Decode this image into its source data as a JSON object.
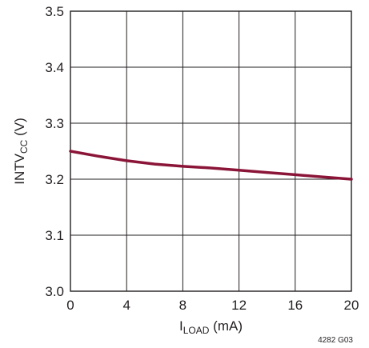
{
  "chart_data": {
    "type": "line",
    "xlabel": {
      "main": "I",
      "sub": "LOAD",
      "suffix": " (mA)"
    },
    "ylabel": {
      "main": "INTV",
      "sub": "CC",
      "suffix": " (V)"
    },
    "x_ticks": [
      0,
      4,
      8,
      12,
      16,
      20
    ],
    "y_ticks": [
      "3.0",
      "3.1",
      "3.2",
      "3.3",
      "3.4",
      "3.5"
    ],
    "xlim": [
      0,
      20
    ],
    "ylim": [
      3.0,
      3.5
    ],
    "grid": true,
    "series": [
      {
        "x": [
          0,
          2,
          4,
          6,
          8,
          10,
          12,
          14,
          16,
          18,
          20
        ],
        "y": [
          3.25,
          3.241,
          3.233,
          3.227,
          3.223,
          3.22,
          3.216,
          3.212,
          3.208,
          3.204,
          3.2
        ],
        "color": "#8b1538"
      }
    ],
    "figure_id": "4282 G03"
  }
}
